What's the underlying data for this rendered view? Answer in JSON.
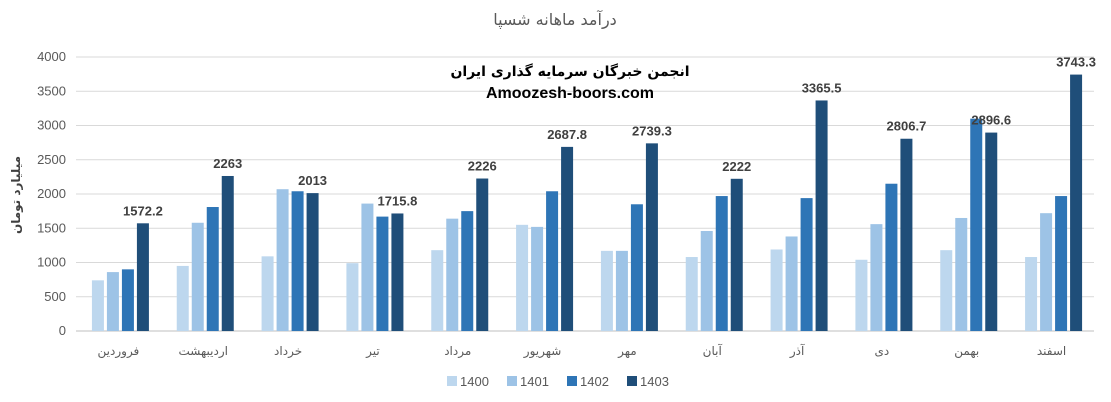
{
  "chart_data": {
    "type": "bar",
    "title": "درآمد ماهانه شسپا",
    "ylabel": "میلیارد تومان",
    "xlabel": "",
    "ylim": [
      0,
      4000
    ],
    "yticks": [
      0,
      500,
      1000,
      1500,
      2000,
      2500,
      3000,
      3500,
      4000
    ],
    "grid": true,
    "legend_position": "bottom",
    "categories": [
      "فروردین",
      "اردیبهشت",
      "خرداد",
      "تیر",
      "مرداد",
      "شهریور",
      "مهر",
      "آبان",
      "آذر",
      "دی",
      "بهمن",
      "اسفند"
    ],
    "series": [
      {
        "name": "1400",
        "color": "#bdd7ee",
        "values": [
          740,
          950,
          1090,
          990,
          1180,
          1550,
          1170,
          1080,
          1190,
          1040,
          1180,
          1080
        ]
      },
      {
        "name": "1401",
        "color": "#9dc3e6",
        "values": [
          860,
          1580,
          2070,
          1860,
          1640,
          1520,
          1170,
          1460,
          1380,
          1560,
          1650,
          1720
        ]
      },
      {
        "name": "1402",
        "color": "#2e75b6",
        "values": [
          900,
          1810,
          2040,
          1670,
          1750,
          2040,
          1850,
          1970,
          1940,
          2150,
          3100,
          1970
        ]
      },
      {
        "name": "1403",
        "color": "#1f4e79",
        "values": [
          1572.2,
          2263,
          2013,
          1715.8,
          2226,
          2687.8,
          2739.3,
          2222,
          3365.5,
          2806.7,
          2896.6,
          3743.3
        ]
      }
    ],
    "data_labels_series": "1403",
    "data_labels": [
      "1572.2",
      "2263",
      "2013",
      "1715.8",
      "2226",
      "2687.8",
      "2739.3",
      "2222",
      "3365.5",
      "2806.7",
      "2896.6",
      "3743.3"
    ],
    "annotation": {
      "line1": "انجمن خبرگان سرمایه گذاری ایران",
      "line2": "Amoozesh-boors.com"
    }
  }
}
